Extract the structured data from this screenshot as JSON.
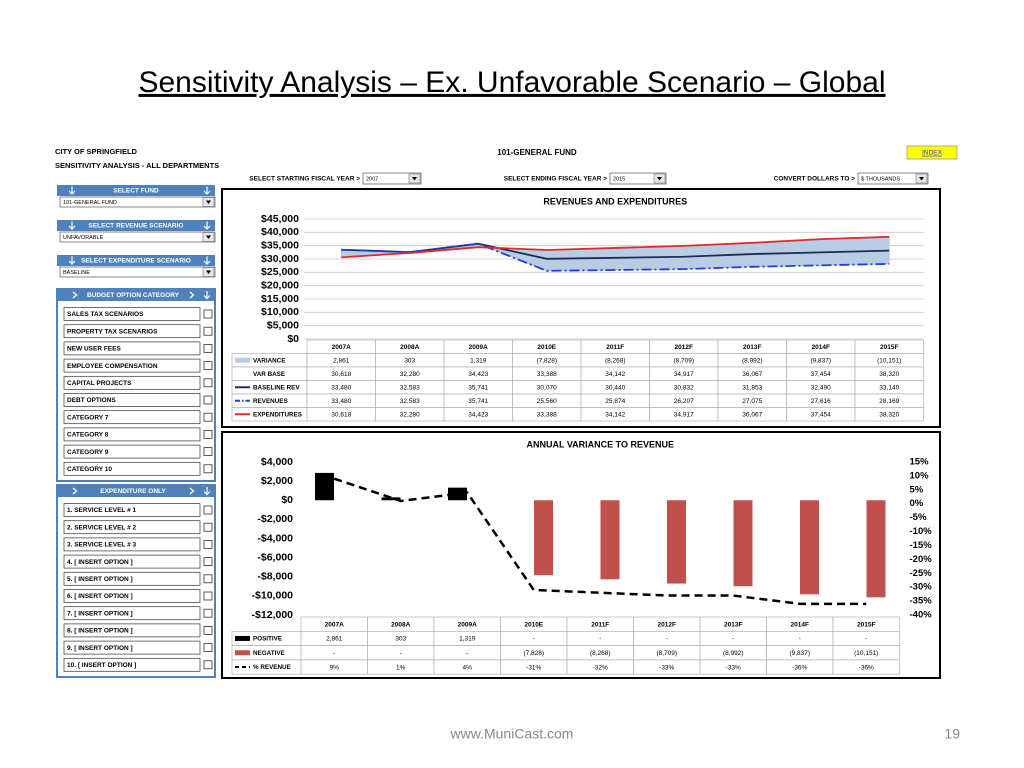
{
  "slide": {
    "title": "Sensitivity Analysis – Ex. Unfavorable Scenario – Global",
    "footer_url": "www.MuniCast.com",
    "page_number": "19"
  },
  "dashboard": {
    "org": "CITY OF SPRINGFIELD",
    "subtitle": "SENSITIVITY ANALYSIS - ALL DEPARTMENTS",
    "fund_title": "101-GENERAL FUND",
    "index_button": "INDEX",
    "selectors": [
      {
        "label": "SELECT STARTING FISCAL YEAR >",
        "value": "2007"
      },
      {
        "label": "SELECT ENDING FISCAL YEAR >",
        "value": "2015"
      },
      {
        "label": "CONVERT DOLLARS TO >",
        "value": "$ THOUSANDS"
      }
    ],
    "left_panel": {
      "dropdowns": [
        {
          "header": "SELECT FUND",
          "value": "101-GENERAL FUND"
        },
        {
          "header": "SELECT REVENUE SCENARIO",
          "value": "UNFAVORABLE"
        },
        {
          "header": "SELECT EXPENDITURE SCENARIO",
          "value": "BASELINE"
        }
      ],
      "groups": [
        {
          "header": "BUDGET OPTION CATEGORY",
          "items": [
            "SALES TAX SCENARIOS",
            "PROPERTY TAX SCENARIOS",
            "NEW USER FEES",
            "EMPLOYEE COMPENSATION",
            "CAPITAL PROJECTS",
            "DEBT OPTIONS",
            "CATEGORY 7",
            "CATEGORY 8",
            "CATEGORY 9",
            "CATEGORY 10"
          ]
        },
        {
          "header": "EXPENDITURE ONLY",
          "items": [
            "1. SERVICE LEVEL # 1",
            "2. SERVICE LEVEL # 2",
            "3. SERVICE LEVEL # 3",
            "4. [ INSERT OPTION ]",
            "5. [ INSERT OPTION ]",
            "6. [ INSERT OPTION ]",
            "7. [ INSERT OPTION ]",
            "8. [ INSERT OPTION ]",
            "9. [ INSERT OPTION ]",
            "10. [ INSERT OPTION ]"
          ]
        }
      ]
    }
  },
  "chart_data": [
    {
      "type": "line",
      "title": "REVENUES AND EXPENDITURES",
      "grid": true,
      "categories": [
        "2007A",
        "2008A",
        "2009A",
        "2010E",
        "2011F",
        "2012F",
        "2013F",
        "2014F",
        "2015F"
      ],
      "ylim": [
        0,
        45000
      ],
      "yticks": [
        {
          "value": 0,
          "label": "$0"
        },
        {
          "value": 5000,
          "label": "$5,000"
        },
        {
          "value": 10000,
          "label": "$10,000"
        },
        {
          "value": 15000,
          "label": "$15,000"
        },
        {
          "value": 20000,
          "label": "$20,000"
        },
        {
          "value": 25000,
          "label": "$25,000"
        },
        {
          "value": 30000,
          "label": "$30,000"
        },
        {
          "value": 35000,
          "label": "$35,000"
        },
        {
          "value": 40000,
          "label": "$40,000"
        },
        {
          "value": 45000,
          "label": "$45,000"
        }
      ],
      "series": [
        {
          "name": "VARIANCE",
          "type": "area",
          "color": "#b8cce4",
          "values": [
            2861,
            303,
            1319,
            -7828,
            -8268,
            -8709,
            -8992,
            -9837,
            -10151
          ],
          "value_labels": [
            "2,861",
            "303",
            "1,319",
            "(7,828)",
            "(8,268)",
            "(8,709)",
            "(8,992)",
            "(9,837)",
            "(10,151)"
          ]
        },
        {
          "name": "VAR BASE",
          "type": "base",
          "values": [
            30618,
            32280,
            34423,
            33388,
            34142,
            34917,
            36067,
            37454,
            38320
          ],
          "value_labels": [
            "30,618",
            "32,280",
            "34,423",
            "33,388",
            "34,142",
            "34,917",
            "36,067",
            "37,454",
            "38,320"
          ]
        },
        {
          "name": "BASELINE REV",
          "type": "line",
          "color": "#1f2d5a",
          "line_style": "solid",
          "values": [
            33480,
            32583,
            35741,
            30070,
            30440,
            30832,
            31853,
            32490,
            33140
          ],
          "value_labels": [
            "33,480",
            "32,583",
            "35,741",
            "30,070",
            "30,440",
            "30,832",
            "31,853",
            "32,490",
            "33,140"
          ]
        },
        {
          "name": "REVENUES",
          "type": "line",
          "color": "#1f3fd6",
          "line_style": "dashdot",
          "values": [
            33480,
            32583,
            35741,
            25560,
            25874,
            26207,
            27075,
            27616,
            28169
          ],
          "value_labels": [
            "33,480",
            "32,583",
            "35,741",
            "25,560",
            "25,874",
            "26,207",
            "27,075",
            "27,616",
            "28,169"
          ]
        },
        {
          "name": "EXPENDITURES",
          "type": "line",
          "color": "#e02b2b",
          "line_style": "solid",
          "values": [
            30618,
            32280,
            34423,
            33388,
            34142,
            34917,
            36067,
            37454,
            38320
          ],
          "value_labels": [
            "30,618",
            "32,280",
            "34,423",
            "33,388",
            "34,142",
            "34,917",
            "36,067",
            "37,454",
            "38,320"
          ]
        }
      ]
    },
    {
      "type": "bar",
      "title": "ANNUAL VARIANCE TO REVENUE",
      "grid": false,
      "categories": [
        "2007A",
        "2008A",
        "2009A",
        "2010E",
        "2011F",
        "2012F",
        "2013F",
        "2014F",
        "2015F"
      ],
      "ylim": [
        -12000,
        4000
      ],
      "yticks": [
        {
          "value": -12000,
          "label": "-$12,000"
        },
        {
          "value": -10000,
          "label": "-$10,000"
        },
        {
          "value": -8000,
          "label": "-$8,000"
        },
        {
          "value": -6000,
          "label": "-$6,000"
        },
        {
          "value": -4000,
          "label": "-$4,000"
        },
        {
          "value": -2000,
          "label": "-$2,000"
        },
        {
          "value": 0,
          "label": "$0"
        },
        {
          "value": 2000,
          "label": "$2,000"
        },
        {
          "value": 4000,
          "label": "$4,000"
        }
      ],
      "y2lim": [
        -40,
        15
      ],
      "y2ticks": [
        {
          "value": -40,
          "label": "-40%"
        },
        {
          "value": -35,
          "label": "-35%"
        },
        {
          "value": -30,
          "label": "-30%"
        },
        {
          "value": -25,
          "label": "-25%"
        },
        {
          "value": -20,
          "label": "-20%"
        },
        {
          "value": -15,
          "label": "-15%"
        },
        {
          "value": -10,
          "label": "-10%"
        },
        {
          "value": -5,
          "label": "-5%"
        },
        {
          "value": 0,
          "label": "0%"
        },
        {
          "value": 5,
          "label": "5%"
        },
        {
          "value": 10,
          "label": "10%"
        },
        {
          "value": 15,
          "label": "15%"
        }
      ],
      "series": [
        {
          "name": "POSITIVE",
          "type": "bar",
          "color": "#000000",
          "values": [
            2861,
            303,
            1319,
            null,
            null,
            null,
            null,
            null,
            null
          ],
          "value_labels": [
            "2,861",
            "303",
            "1,319",
            "-",
            "-",
            "-",
            "-",
            "-",
            "-"
          ]
        },
        {
          "name": "NEGATIVE",
          "type": "bar",
          "color": "#c0504d",
          "values": [
            null,
            null,
            null,
            -7828,
            -8268,
            -8709,
            -8992,
            -9837,
            -10151
          ],
          "value_labels": [
            "-",
            "-",
            "-",
            "(7,828)",
            "(8,268)",
            "(8,709)",
            "(8,992)",
            "(9,837)",
            "(10,151)"
          ]
        },
        {
          "name": "% REVENUE",
          "type": "line",
          "axis": "y2",
          "color": "#000000",
          "line_style": "dashed",
          "values": [
            9,
            1,
            4,
            -31,
            -32,
            -33,
            -33,
            -36,
            -36
          ],
          "value_labels": [
            "9%",
            "1%",
            "4%",
            "-31%",
            "-32%",
            "-33%",
            "-33%",
            "-36%",
            "-36%"
          ]
        }
      ]
    }
  ]
}
